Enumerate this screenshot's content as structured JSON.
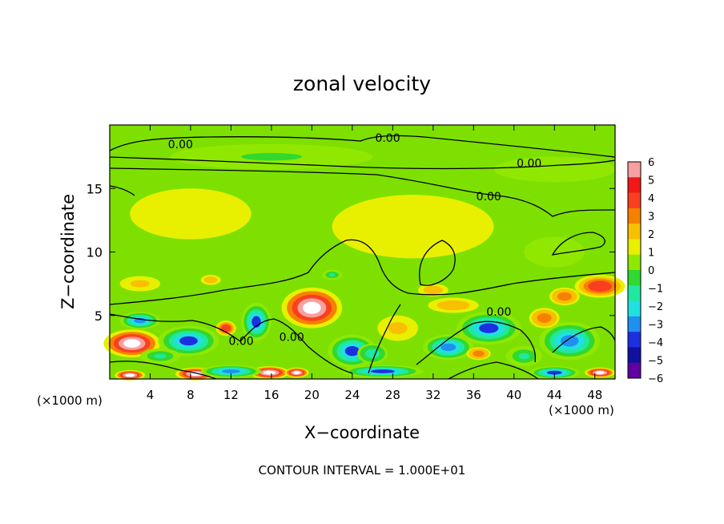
{
  "chart_data": {
    "type": "heatmap",
    "title": "zonal velocity",
    "xlabel": "X−coordinate",
    "ylabel": "Z−coordinate",
    "x_unit_left": "(×1000 m)",
    "x_unit_right": "(×1000 m)",
    "xlim": [
      0,
      50
    ],
    "ylim": [
      0,
      20
    ],
    "x_ticks": [
      4,
      8,
      12,
      16,
      20,
      24,
      28,
      32,
      36,
      40,
      44,
      48
    ],
    "x_tick_labels": [
      "4",
      "8",
      "12",
      "16",
      "20",
      "24",
      "28",
      "32",
      "36",
      "40",
      "44",
      "48"
    ],
    "y_ticks": [
      5,
      10,
      15
    ],
    "y_tick_labels": [
      "5",
      "10",
      "15"
    ],
    "colorbar": {
      "ticks": [
        6,
        5,
        4,
        3,
        2,
        1,
        0,
        -1,
        -2,
        -3,
        -4,
        -5,
        -6
      ],
      "tick_labels": [
        "6",
        "5",
        "4",
        "3",
        "2",
        "1",
        "0",
        "−1",
        "−2",
        "−3",
        "−4",
        "−5",
        "−6"
      ],
      "colors": [
        "#f8a0a0",
        "#f01818",
        "#f84020",
        "#f88000",
        "#f8c000",
        "#e8f000",
        "#90e800",
        "#30d830",
        "#20e8a0",
        "#20e0e0",
        "#2090f0",
        "#1c30e0",
        "#1010a0",
        "#6000a0"
      ]
    },
    "contour_labels": [
      {
        "text": "0.00",
        "x": 7.0,
        "z": 18.5
      },
      {
        "text": "0.00",
        "x": 27.5,
        "z": 19.0
      },
      {
        "text": "0.00",
        "x": 41.5,
        "z": 17.0
      },
      {
        "text": "0.00",
        "x": 37.5,
        "z": 14.4
      },
      {
        "text": "0.00",
        "x": 38.5,
        "z": 5.3
      },
      {
        "text": "0.00",
        "x": 13.0,
        "z": 3.0
      },
      {
        "text": "0.00",
        "x": 18.0,
        "z": 3.3
      }
    ],
    "blobs": [
      {
        "x": 20.0,
        "z": 5.6,
        "rx": 3.0,
        "rz": 1.6,
        "v": 7
      },
      {
        "x": 2.2,
        "z": 2.8,
        "rx": 2.8,
        "rz": 1.1,
        "v": 7
      },
      {
        "x": 37.5,
        "z": 4.0,
        "rx": 2.0,
        "rz": 0.6,
        "v": 7
      },
      {
        "x": 8.5,
        "z": 0.4,
        "rx": 2.0,
        "rz": 0.5,
        "v": 7
      },
      {
        "x": 15.8,
        "z": 0.5,
        "rx": 2.0,
        "rz": 0.5,
        "v": 7
      },
      {
        "x": 18.5,
        "z": 0.5,
        "rx": 1.2,
        "rz": 0.4,
        "v": 7
      },
      {
        "x": 48.5,
        "z": 0.5,
        "rx": 1.5,
        "rz": 0.4,
        "v": 7
      },
      {
        "x": 2.0,
        "z": 0.3,
        "rx": 1.5,
        "rz": 0.4,
        "v": 7
      },
      {
        "x": 14.5,
        "z": 4.5,
        "rx": 1.5,
        "rz": 1.5,
        "v": -5
      },
      {
        "x": 7.8,
        "z": 3.0,
        "rx": 3.0,
        "rz": 1.2,
        "v": -5
      },
      {
        "x": 24.0,
        "z": 2.2,
        "rx": 2.4,
        "rz": 1.3,
        "v": -5
      },
      {
        "x": 37.5,
        "z": 4.0,
        "rx": 3.2,
        "rz": 1.3,
        "v": -5
      },
      {
        "x": 33.5,
        "z": 2.5,
        "rx": 2.5,
        "rz": 1.0,
        "v": -4
      },
      {
        "x": 45.5,
        "z": 3.0,
        "rx": 3.0,
        "rz": 1.5,
        "v": -4
      },
      {
        "x": 3.0,
        "z": 4.6,
        "rx": 2.0,
        "rz": 0.7,
        "v": -4
      },
      {
        "x": 27.0,
        "z": 0.6,
        "rx": 4.0,
        "rz": 0.5,
        "v": -5
      },
      {
        "x": 12.0,
        "z": 0.6,
        "rx": 3.0,
        "rz": 0.5,
        "v": -4
      },
      {
        "x": 44.0,
        "z": 0.5,
        "rx": 2.5,
        "rz": 0.5,
        "v": -5
      },
      {
        "x": 48.5,
        "z": 7.3,
        "rx": 2.5,
        "rz": 0.9,
        "v": 4
      },
      {
        "x": 45.0,
        "z": 6.5,
        "rx": 1.5,
        "rz": 0.7,
        "v": 3
      },
      {
        "x": 34.0,
        "z": 5.8,
        "rx": 2.5,
        "rz": 0.6,
        "v": 2
      },
      {
        "x": 11.5,
        "z": 4.0,
        "rx": 1.0,
        "rz": 0.6,
        "v": 4
      },
      {
        "x": 36.5,
        "z": 2.0,
        "rx": 1.2,
        "rz": 0.5,
        "v": 3
      },
      {
        "x": 28.5,
        "z": 4.0,
        "rx": 2.0,
        "rz": 1.0,
        "v": 1.5
      },
      {
        "x": 43.0,
        "z": 4.8,
        "rx": 1.5,
        "rz": 0.8,
        "v": 3
      },
      {
        "x": 10.0,
        "z": 7.8,
        "rx": 1.0,
        "rz": 0.4,
        "v": 2
      },
      {
        "x": 32.0,
        "z": 7.0,
        "rx": 1.5,
        "rz": 0.5,
        "v": 2
      },
      {
        "x": 3.0,
        "z": 7.5,
        "rx": 2.0,
        "rz": 0.6,
        "v": 1.5
      },
      {
        "x": 22.0,
        "z": 8.2,
        "rx": 1.0,
        "rz": 0.4,
        "v": -2
      },
      {
        "x": 44.0,
        "z": 10.0,
        "rx": 3.0,
        "rz": 1.2,
        "v": -0.8
      },
      {
        "x": 16.0,
        "z": 17.5,
        "rx": 10.0,
        "rz": 1.0,
        "v": -1.0
      },
      {
        "x": 44.0,
        "z": 16.5,
        "rx": 6.0,
        "rz": 1.0,
        "v": -0.9
      },
      {
        "x": 8.0,
        "z": 13.0,
        "rx": 6.0,
        "rz": 2.0,
        "v": 0.8
      },
      {
        "x": 30.0,
        "z": 12.0,
        "rx": 8.0,
        "rz": 2.5,
        "v": 0.7
      },
      {
        "x": 26.0,
        "z": 2.0,
        "rx": 1.5,
        "rz": 0.8,
        "v": -2.5
      },
      {
        "x": 5.0,
        "z": 1.8,
        "rx": 2.0,
        "rz": 0.6,
        "v": -2
      },
      {
        "x": 41.0,
        "z": 1.8,
        "rx": 1.8,
        "rz": 0.8,
        "v": -2
      }
    ],
    "footer": "CONTOUR INTERVAL = 1.000E+01"
  }
}
